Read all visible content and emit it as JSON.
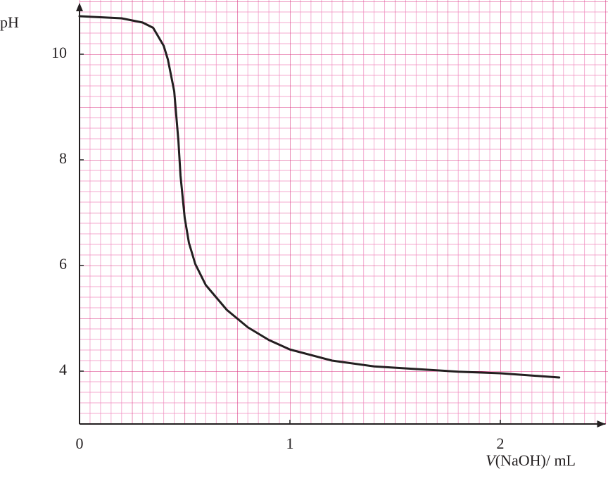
{
  "chart_data": {
    "type": "line",
    "ylabel": "pH",
    "xlabel_symbol": "V",
    "xlabel": "(NaOH)/ mL",
    "xlim": [
      0,
      2.5
    ],
    "ylim": [
      3,
      11
    ],
    "xticks": [
      0,
      1,
      2
    ],
    "yticks": [
      4,
      6,
      8,
      10
    ],
    "color": "#231f20",
    "x": [
      0,
      0.1,
      0.2,
      0.3,
      0.35,
      0.4,
      0.42,
      0.45,
      0.47,
      0.48,
      0.5,
      0.52,
      0.55,
      0.6,
      0.7,
      0.8,
      0.9,
      1.0,
      1.2,
      1.4,
      1.6,
      1.8,
      2.0,
      2.28
    ],
    "values": [
      10.72,
      10.7,
      10.68,
      10.6,
      10.5,
      10.16,
      9.9,
      9.3,
      8.36,
      7.7,
      6.9,
      6.43,
      6.03,
      5.63,
      5.16,
      4.83,
      4.59,
      4.41,
      4.2,
      4.09,
      4.04,
      3.99,
      3.96,
      3.88
    ]
  }
}
